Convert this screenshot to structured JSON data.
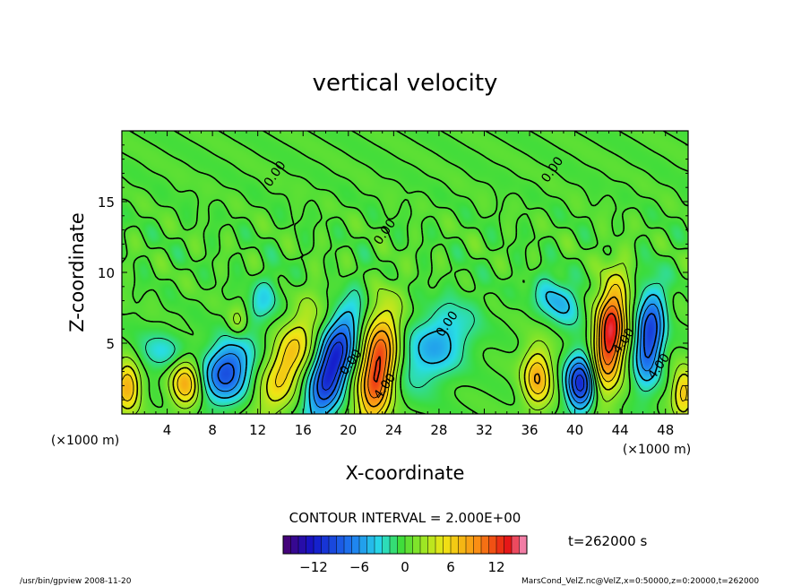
{
  "chart_data": {
    "type": "heatmap",
    "title": "vertical velocity",
    "xlabel": "X-coordinate",
    "ylabel": "Z-coordinate",
    "x_unit_left": "(×1000 m)",
    "x_unit_right": "(×1000 m)",
    "xlim": [
      0,
      50
    ],
    "ylim": [
      0,
      20
    ],
    "xticks": [
      4,
      8,
      12,
      16,
      20,
      24,
      28,
      32,
      36,
      40,
      44,
      48
    ],
    "yticks": [
      5,
      10,
      15
    ],
    "contour_interval_text": "CONTOUR INTERVAL = 2.000E+00",
    "time_text": "t=262000 s",
    "colorbar_ticks": [
      -12,
      -6,
      0,
      6,
      12
    ],
    "colorbar_range": [
      -16,
      16
    ],
    "contour_labels": [
      {
        "text": "0.00",
        "x": 13.8,
        "z": 16.8
      },
      {
        "text": "0.00",
        "x": 38.3,
        "z": 17.1
      },
      {
        "text": "0.00",
        "x": 23.5,
        "z": 12.7
      },
      {
        "text": "0.00",
        "x": 29.0,
        "z": 6.2
      },
      {
        "text": "0.00",
        "x": 20.5,
        "z": 3.5
      },
      {
        "text": "4.00",
        "x": 23.5,
        "z": 1.8
      },
      {
        "text": "4.00",
        "x": 44.6,
        "z": 5.0
      },
      {
        "text": "4.00",
        "x": 47.7,
        "z": 3.2
      }
    ],
    "features": [
      {
        "x": 22.6,
        "z": 3.2,
        "sx": 1.1,
        "sz": 2.8,
        "amp": 13,
        "tilt": 0.15
      },
      {
        "x": 14.6,
        "z": 3.6,
        "sx": 1.2,
        "sz": 2.6,
        "amp": 7,
        "tilt": 0.45
      },
      {
        "x": 43.1,
        "z": 5.6,
        "sx": 0.95,
        "sz": 2.6,
        "amp": 14,
        "tilt": 0.1
      },
      {
        "x": 5.6,
        "z": 2.2,
        "sx": 0.9,
        "sz": 1.2,
        "amp": 8,
        "tilt": 0
      },
      {
        "x": 36.7,
        "z": 2.6,
        "sx": 0.9,
        "sz": 1.5,
        "amp": 8,
        "tilt": 0
      },
      {
        "x": 0.5,
        "z": 2.0,
        "sx": 0.8,
        "sz": 1.3,
        "amp": 8,
        "tilt": 0
      },
      {
        "x": 49.6,
        "z": 1.5,
        "sx": 0.7,
        "sz": 1.2,
        "amp": 7,
        "tilt": 0
      },
      {
        "x": 10.2,
        "z": 6.5,
        "sx": 0.6,
        "sz": 0.8,
        "amp": 3,
        "tilt": 0
      },
      {
        "x": 18.6,
        "z": 3.4,
        "sx": 1.1,
        "sz": 2.6,
        "amp": -12,
        "tilt": 0.35
      },
      {
        "x": 9.3,
        "z": 3.0,
        "sx": 1.4,
        "sz": 1.5,
        "amp": -9,
        "tilt": 0.2
      },
      {
        "x": 40.5,
        "z": 2.2,
        "sx": 0.9,
        "sz": 1.4,
        "amp": -11,
        "tilt": 0
      },
      {
        "x": 46.6,
        "z": 5.5,
        "sx": 0.85,
        "sz": 2.3,
        "amp": -10,
        "tilt": 0.1
      },
      {
        "x": 27.7,
        "z": 4.8,
        "sx": 2.0,
        "sz": 2.0,
        "amp": -5,
        "tilt": 0.5
      },
      {
        "x": 38.5,
        "z": 8.0,
        "sx": 1.3,
        "sz": 1.1,
        "amp": -5,
        "tilt": -0.5
      },
      {
        "x": 12.5,
        "z": 8.0,
        "sx": 1.0,
        "sz": 1.3,
        "amp": -3,
        "tilt": 0.3
      },
      {
        "x": 3.5,
        "z": 4.3,
        "sx": 1.8,
        "sz": 1.0,
        "amp": -3,
        "tilt": 0
      }
    ],
    "footer_left": "/usr/bin/gpview   2008-11-20",
    "footer_right": "MarsCond_VelZ.nc@VelZ,x=0:50000,z=0:20000,t=262000"
  }
}
